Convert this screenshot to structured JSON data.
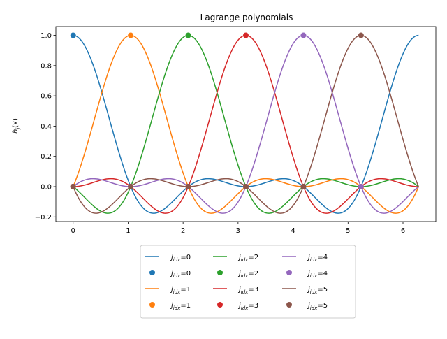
{
  "chart_data": {
    "type": "line",
    "title": "Lagrange polynomials",
    "xlabel": "x",
    "ylabel_base": "h",
    "ylabel_sub": "j",
    "ylabel_tail": "(x)",
    "xlim": [
      -0.314,
      6.597
    ],
    "ylim": [
      -0.231,
      1.058
    ],
    "xticks": [
      0,
      1,
      2,
      3,
      4,
      5,
      6
    ],
    "yticks": [
      -0.2,
      0.0,
      0.2,
      0.4,
      0.6,
      0.8,
      1.0
    ],
    "ytick_labels": [
      "−0.2",
      "0.0",
      "0.2",
      "0.4",
      "0.6",
      "0.8",
      "1.0"
    ],
    "node_count": 6,
    "x_range": [
      0,
      6.2832
    ],
    "grid": false,
    "legend": {
      "placement": "below",
      "columns": 3
    },
    "series": [
      {
        "name": "j_idx=0",
        "color": "#1f77b4",
        "node": [
          0.0,
          1.0
        ]
      },
      {
        "name": "j_idx=1",
        "color": "#ff7f0e",
        "node": [
          1.0472,
          1.0
        ]
      },
      {
        "name": "j_idx=2",
        "color": "#2ca02c",
        "node": [
          2.0944,
          1.0
        ]
      },
      {
        "name": "j_idx=3",
        "color": "#d62728",
        "node": [
          3.1416,
          1.0
        ]
      },
      {
        "name": "j_idx=4",
        "color": "#9467bd",
        "node": [
          4.1888,
          1.0
        ]
      },
      {
        "name": "j_idx=5",
        "color": "#8c564b",
        "node": [
          5.236,
          1.0
        ]
      }
    ],
    "legend_items": [
      {
        "kind": "line",
        "series": 0,
        "label_main": "j",
        "label_sub": "idx",
        "label_tail": "=0"
      },
      {
        "kind": "marker",
        "series": 0,
        "label_main": "j",
        "label_sub": "idx",
        "label_tail": "=0"
      },
      {
        "kind": "line",
        "series": 1,
        "label_main": "j",
        "label_sub": "idx",
        "label_tail": "=1"
      },
      {
        "kind": "marker",
        "series": 1,
        "label_main": "j",
        "label_sub": "idx",
        "label_tail": "=1"
      },
      {
        "kind": "line",
        "series": 2,
        "label_main": "j",
        "label_sub": "idx",
        "label_tail": "=2"
      },
      {
        "kind": "marker",
        "series": 2,
        "label_main": "j",
        "label_sub": "idx",
        "label_tail": "=2"
      },
      {
        "kind": "line",
        "series": 3,
        "label_main": "j",
        "label_sub": "idx",
        "label_tail": "=3"
      },
      {
        "kind": "marker",
        "series": 3,
        "label_main": "j",
        "label_sub": "idx",
        "label_tail": "=3"
      },
      {
        "kind": "line",
        "series": 4,
        "label_main": "j",
        "label_sub": "idx",
        "label_tail": "=4"
      },
      {
        "kind": "marker",
        "series": 4,
        "label_main": "j",
        "label_sub": "idx",
        "label_tail": "=4"
      },
      {
        "kind": "line",
        "series": 5,
        "label_main": "j",
        "label_sub": "idx",
        "label_tail": "=5"
      },
      {
        "kind": "marker",
        "series": 5,
        "label_main": "j",
        "label_sub": "idx",
        "label_tail": "=5"
      }
    ]
  }
}
